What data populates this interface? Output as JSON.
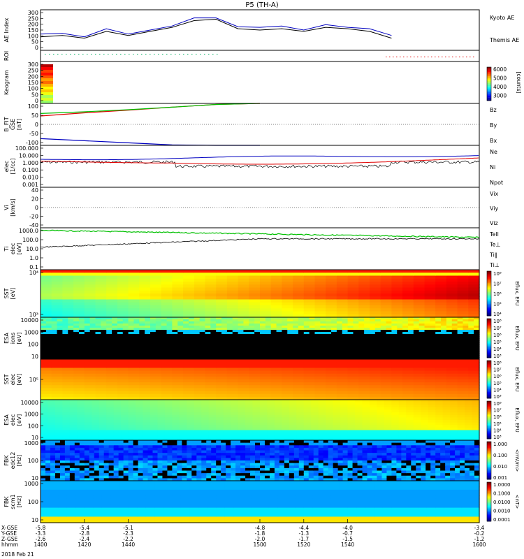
{
  "title": "P5 (TH-A)",
  "colors": {
    "red": "#e00000",
    "green": "#00c000",
    "blue": "#0000c0",
    "black": "#000000"
  },
  "chart_data": [
    {
      "type": "line",
      "panel": "ae",
      "ylabel": "AE Index",
      "ylim": [
        0,
        300
      ],
      "yticks": [
        "300",
        "250",
        "200",
        "150",
        "100",
        "50",
        "0"
      ],
      "x": [
        1400,
        1410,
        1420,
        1430,
        1440,
        1450,
        1460,
        1470,
        1480,
        1490,
        1500,
        1510,
        1520,
        1530,
        1540,
        1550,
        1560
      ],
      "series": [
        {
          "name": "Kyoto AE",
          "color": "#0000c0",
          "values": [
            120,
            125,
            100,
            160,
            120,
            150,
            180,
            240,
            240,
            175,
            170,
            180,
            150,
            190,
            170,
            160,
            110
          ]
        },
        {
          "name": "Themis AE",
          "color": "#000000",
          "values": [
            100,
            110,
            90,
            140,
            110,
            140,
            170,
            220,
            230,
            160,
            150,
            160,
            140,
            170,
            160,
            140,
            90
          ]
        }
      ]
    },
    {
      "type": "scatter",
      "panel": "roi",
      "ylabel": "ROI"
    },
    {
      "type": "heatmap",
      "panel": "keogram",
      "ylabel": "Keogram",
      "ylim": [
        0,
        300
      ],
      "yticks": [
        "300",
        "250",
        "200",
        "150",
        "100",
        "50",
        "0"
      ],
      "colorbar": {
        "ticks": [
          "6000",
          "5000",
          "4000",
          "3000"
        ],
        "label": "[counts]"
      }
    },
    {
      "type": "line",
      "panel": "bfield",
      "ylabel": "B_FIT",
      "ylabel2": "GSE",
      "ylabel3": "[nT]",
      "ylim": [
        -100,
        100
      ],
      "yticks": [
        "100",
        "50",
        "0",
        "-50",
        "-100"
      ],
      "x": [
        1400,
        1420,
        1440,
        1460,
        1480,
        1500
      ],
      "series": [
        {
          "name": "Bz",
          "color": "#e00000",
          "values": [
            40,
            55,
            68,
            82,
            95,
            100
          ]
        },
        {
          "name": "By",
          "color": "#00c000",
          "values": [
            52,
            60,
            70,
            82,
            95,
            100
          ]
        },
        {
          "name": "Bx",
          "color": "#0000c0",
          "values": [
            -68,
            -78,
            -88,
            -98,
            -105,
            -110
          ]
        }
      ]
    },
    {
      "type": "line",
      "panel": "density",
      "ylabel": "elec",
      "ylabel2": "[1/cc]",
      "ylog": true,
      "yticks": [
        "100.000",
        "10.000",
        "1.000",
        "0.100",
        "0.010",
        "0.001"
      ],
      "series": [
        {
          "name": "Ne",
          "color": "#e00000"
        },
        {
          "name": "Ni",
          "color": "#000000"
        },
        {
          "name": "Npot",
          "color": "#0000c0"
        }
      ]
    },
    {
      "type": "line",
      "panel": "velocity",
      "ylabel": "Vi",
      "ylabel2": "[km/s]",
      "ylim": [
        -50,
        50
      ],
      "yticks": [
        "40",
        "20",
        "0",
        "-20",
        "-40"
      ],
      "series": [
        {
          "name": "Vix",
          "color": "#e00000"
        },
        {
          "name": "Viy",
          "color": "#00c000"
        },
        {
          "name": "Viz",
          "color": "#0000c0"
        }
      ]
    },
    {
      "type": "line",
      "panel": "temperature",
      "ylabel": "Ti",
      "ylabel2": "elec",
      "ylabel3": "[eV]",
      "ylog": true,
      "yticks": [
        "1000.0",
        "100.0",
        "10.0",
        "1.0",
        "0.1"
      ],
      "series": [
        {
          "name": "Tell",
          "color": "#000000"
        },
        {
          "name": "Te⊥",
          "color": "#e00000"
        },
        {
          "name": "Ti∥",
          "color": "#00c000"
        },
        {
          "name": "Ti⊥",
          "color": "#0000c0"
        }
      ]
    },
    {
      "type": "heatmap",
      "panel": "sst_ion",
      "ylabel": "SST",
      "ylabel2": "[eV]",
      "yticks": [
        "10⁴",
        "10³"
      ],
      "colorbar": {
        "ticks": [
          "10⁸",
          "10⁷",
          "10⁶",
          "10⁵",
          "10⁴"
        ],
        "label": "Eflux, EFU"
      }
    },
    {
      "type": "heatmap",
      "panel": "esa_ion",
      "ylabel": "ESA",
      "ylabel2": "ions",
      "ylabel3": "[eV]",
      "yticks": [
        "10000",
        "1000",
        "100",
        "10"
      ],
      "colorbar": {
        "ticks": [
          "10⁸",
          "10⁷",
          "10⁶",
          "10⁵",
          "10⁴",
          "10³"
        ],
        "label": "Eflux, EFU"
      }
    },
    {
      "type": "heatmap",
      "panel": "sst_elec",
      "ylabel": "SST",
      "ylabel2": "elec",
      "ylabel3": "[eV]",
      "yticks": [
        "10⁵"
      ],
      "colorbar": {
        "ticks": [
          "10⁸",
          "10⁷",
          "10⁶",
          "10⁵",
          "10⁴",
          "10³"
        ],
        "label": "Eflux, EFU"
      }
    },
    {
      "type": "heatmap",
      "panel": "esa_elec",
      "ylabel": "ESA",
      "ylabel2": "elec",
      "ylabel3": "[eV]",
      "yticks": [
        "10000",
        "1000",
        "100",
        "10"
      ],
      "colorbar": {
        "ticks": [
          "10⁸",
          "10⁷",
          "10⁶",
          "10⁵",
          "10⁴",
          "10³"
        ],
        "label": "Eflux, EFU"
      }
    },
    {
      "type": "heatmap",
      "panel": "fbk_e",
      "ylabel": "FBK",
      "ylabel2": "edc12",
      "ylabel3": "[Hz]",
      "yticks": [
        "1000",
        "100",
        "10"
      ],
      "colorbar": {
        "ticks": [
          "1.000",
          "0.100",
          "0.010",
          "0.001"
        ],
        "label": "<mV/m>"
      }
    },
    {
      "type": "heatmap",
      "panel": "fbk_b",
      "ylabel": "FBK",
      "ylabel2": "scm1",
      "ylabel3": "[Hz]",
      "yticks": [
        "1000",
        "100",
        "10"
      ],
      "colorbar": {
        "ticks": [
          "1.0000",
          "0.1000",
          "0.0100",
          "0.0010",
          "0.0001"
        ],
        "label": "<nT>"
      }
    }
  ],
  "xaxis": {
    "rows": [
      {
        "label": "X-GSE",
        "values": [
          "-5.8",
          "-5.4",
          "-5.1",
          "-4.8",
          "-4.4",
          "-4.0",
          "-3.4"
        ]
      },
      {
        "label": "Y-GSE",
        "values": [
          "-3.3",
          "-2.8",
          "-2.3",
          "-1.8",
          "-1.3",
          "-0.7",
          "-0.2"
        ]
      },
      {
        "label": "Z-GSE",
        "values": [
          "-2.6",
          "-2.4",
          "-2.2",
          "-2.0",
          "-1.7",
          "-1.5",
          "-1.2"
        ]
      },
      {
        "label": "hhmm",
        "values": [
          "1400",
          "1420",
          "1440",
          "1500",
          "1520",
          "1540",
          "1600"
        ]
      }
    ],
    "date": "2018 Feb 21"
  }
}
